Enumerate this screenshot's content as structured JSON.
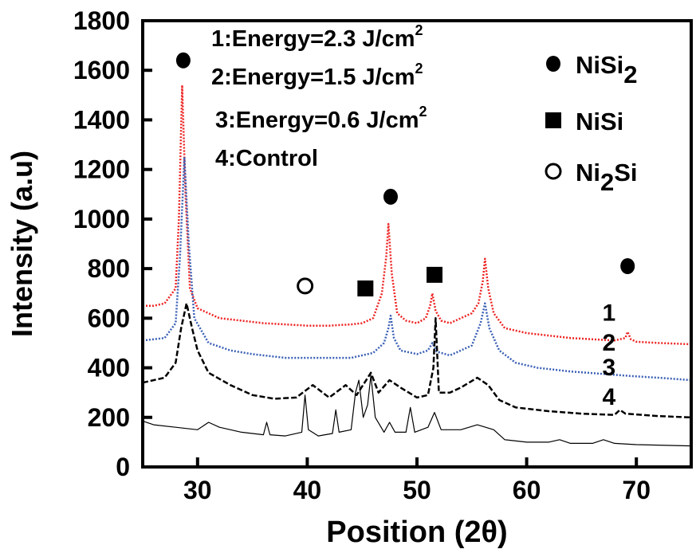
{
  "chart_data": {
    "type": "line",
    "title": "",
    "xlabel": "Position (2θ)",
    "ylabel": "Intensity (a.u)",
    "xlim": [
      25,
      75
    ],
    "ylim": [
      0,
      1800
    ],
    "xticks": [
      30,
      40,
      50,
      60,
      70
    ],
    "yticks": [
      0,
      200,
      400,
      600,
      800,
      1000,
      1200,
      1400,
      1600,
      1800
    ],
    "grid": false,
    "legend_text": [
      {
        "num": "1",
        "text": "1:Energy=2.3 J/cm",
        "sup": "2"
      },
      {
        "num": "2",
        "text": "2:Energy=1.5 J/cm",
        "sup": "2"
      },
      {
        "num": "3",
        "text": "3:Energy=0.6 J/cm",
        "sup": "2"
      },
      {
        "num": "4",
        "text": "4:Control",
        "sup": ""
      }
    ],
    "phase_legend": [
      {
        "marker": "filled-circle",
        "base": "NiSi",
        "sub": "2",
        "tail": ""
      },
      {
        "marker": "filled-square",
        "base": "NiSi",
        "sub": "",
        "tail": ""
      },
      {
        "marker": "open-circle",
        "base": "Ni",
        "sub": "2",
        "tail": "Si"
      }
    ],
    "series": [
      {
        "label": "1",
        "color": "#ee2222",
        "style": "dotted",
        "x": [
          25,
          26,
          27,
          28,
          28.3,
          28.6,
          28.9,
          29.3,
          30,
          32,
          34,
          36,
          38,
          40,
          42,
          44,
          45,
          46,
          46.8,
          47.2,
          47.4,
          47.7,
          48.2,
          49,
          50,
          50.8,
          51.2,
          51.4,
          51.7,
          52.2,
          53,
          54,
          55,
          55.6,
          56.0,
          56.2,
          56.5,
          57,
          58,
          60,
          62,
          64,
          66,
          68,
          69,
          69.2,
          69.5,
          70,
          72,
          75
        ],
        "y": [
          650,
          650,
          660,
          720,
          1000,
          1540,
          1100,
          720,
          640,
          600,
          590,
          580,
          575,
          570,
          570,
          575,
          580,
          600,
          700,
          850,
          980,
          780,
          620,
          590,
          580,
          600,
          650,
          700,
          630,
          590,
          580,
          600,
          620,
          660,
          750,
          840,
          720,
          620,
          560,
          540,
          530,
          520,
          515,
          510,
          520,
          545,
          515,
          505,
          500,
          495
        ]
      },
      {
        "label": "2",
        "color": "#3a5fb5",
        "style": "dotted",
        "x": [
          25,
          27,
          28,
          28.4,
          28.8,
          29.2,
          29.7,
          31,
          33,
          35,
          38,
          40,
          42,
          44,
          46,
          47,
          47.4,
          47.6,
          47.9,
          48.5,
          50,
          51,
          51.4,
          51.8,
          53,
          55,
          55.8,
          56.2,
          56.6,
          57.5,
          59,
          61,
          64,
          67,
          70,
          72,
          75
        ],
        "y": [
          510,
          520,
          580,
          850,
          1250,
          900,
          600,
          500,
          470,
          455,
          440,
          440,
          440,
          440,
          460,
          500,
          560,
          610,
          520,
          470,
          455,
          470,
          500,
          465,
          450,
          490,
          580,
          660,
          560,
          470,
          420,
          400,
          385,
          375,
          365,
          360,
          350
        ]
      },
      {
        "label": "3",
        "color": "#000000",
        "style": "dashed",
        "x": [
          25,
          27,
          28,
          28.5,
          29,
          29.5,
          30,
          31,
          33,
          35,
          37,
          39,
          40.5,
          42,
          43.5,
          44.5,
          45.8,
          46.5,
          47.5,
          48.5,
          50,
          51,
          51.5,
          51.7,
          52,
          53,
          54,
          55.5,
          56.5,
          57.5,
          59,
          62,
          65,
          68,
          68.5,
          69,
          72,
          75
        ],
        "y": [
          340,
          360,
          420,
          560,
          660,
          560,
          470,
          380,
          330,
          290,
          275,
          280,
          330,
          280,
          330,
          290,
          380,
          300,
          350,
          320,
          280,
          290,
          400,
          600,
          300,
          300,
          320,
          360,
          330,
          270,
          240,
          225,
          215,
          210,
          230,
          215,
          205,
          200
        ]
      },
      {
        "label": "4",
        "color": "#000000",
        "style": "solid",
        "x": [
          25,
          26,
          28,
          30,
          31,
          32,
          34,
          36,
          36.3,
          36.6,
          38,
          39.5,
          39.8,
          40.1,
          41,
          42.3,
          42.6,
          42.9,
          44,
          44.4,
          44.7,
          45.1,
          45.5,
          45.8,
          46.2,
          47,
          47.5,
          48,
          49,
          49.4,
          49.8,
          51,
          51.6,
          52.2,
          54,
          55.5,
          57,
          58,
          60,
          62,
          63,
          64,
          66,
          67,
          68,
          70,
          75
        ],
        "y": [
          185,
          170,
          160,
          150,
          180,
          160,
          140,
          130,
          180,
          130,
          125,
          140,
          290,
          150,
          125,
          135,
          230,
          140,
          150,
          300,
          350,
          200,
          250,
          370,
          200,
          140,
          180,
          140,
          140,
          240,
          140,
          160,
          220,
          150,
          150,
          170,
          150,
          110,
          100,
          100,
          110,
          95,
          95,
          110,
          95,
          90,
          85
        ]
      }
    ],
    "curve_labels": [
      {
        "text": "1",
        "x": 67.5,
        "y": 590
      },
      {
        "text": "2",
        "x": 67.5,
        "y": 470
      },
      {
        "text": "3",
        "x": 67.5,
        "y": 370
      },
      {
        "text": "4",
        "x": 67.5,
        "y": 250
      }
    ],
    "peak_markers": [
      {
        "marker": "filled-circle",
        "x": 28.7,
        "y": 1640
      },
      {
        "marker": "filled-circle",
        "x": 47.6,
        "y": 1090
      },
      {
        "marker": "filled-circle",
        "x": 69.2,
        "y": 810
      },
      {
        "marker": "open-circle",
        "x": 39.8,
        "y": 730
      },
      {
        "marker": "filled-square",
        "x": 45.3,
        "y": 720
      },
      {
        "marker": "filled-square",
        "x": 51.6,
        "y": 775
      }
    ]
  }
}
